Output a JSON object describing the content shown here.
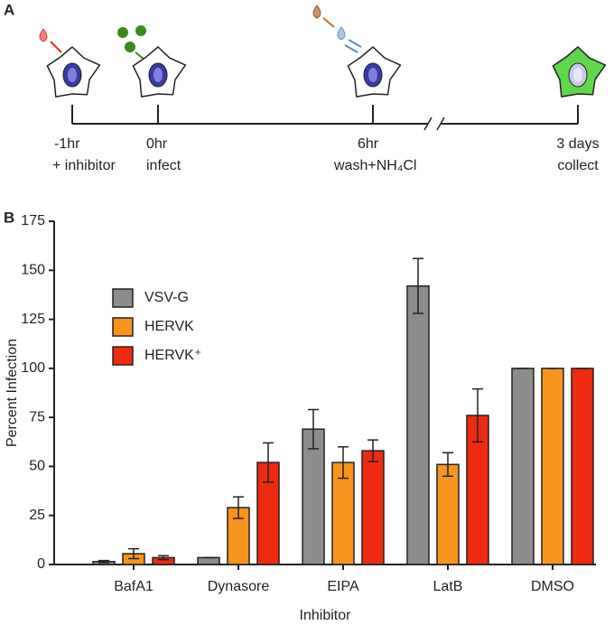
{
  "panel_a": {
    "label": "A",
    "steps": [
      {
        "time": "-1hr",
        "action": "+ inhibitor"
      },
      {
        "time": "0hr",
        "action": "infect"
      },
      {
        "time": "6hr",
        "action": "wash+NH₄Cl"
      },
      {
        "time": "3 days",
        "action": "collect"
      }
    ]
  },
  "chart_data": {
    "type": "bar",
    "panel_label": "B",
    "x_label": "Inhibitor",
    "y_label": "Percent Infection",
    "categories": [
      "BafA1",
      "Dynasore",
      "EIPA",
      "LatB",
      "DMSO"
    ],
    "series": [
      {
        "name": "VSV-G",
        "color": "#8c8c8c",
        "values": [
          1.5,
          3.5,
          69,
          142,
          100
        ],
        "errors": [
          0.5,
          0,
          10,
          14,
          0
        ]
      },
      {
        "name": "HERVK",
        "color": "#f7941d",
        "values": [
          5.5,
          29,
          52,
          51,
          100
        ],
        "errors": [
          2.5,
          5.5,
          8,
          6,
          0
        ]
      },
      {
        "name": "HERVK⁺",
        "color": "#ee2a11",
        "values": [
          3.5,
          52,
          58,
          76,
          100
        ],
        "errors": [
          1,
          10,
          5.5,
          13.5,
          0
        ]
      }
    ],
    "ylim": [
      0,
      175
    ],
    "yticks": [
      0,
      25,
      50,
      75,
      100,
      125,
      150,
      175
    ],
    "grid": false
  }
}
